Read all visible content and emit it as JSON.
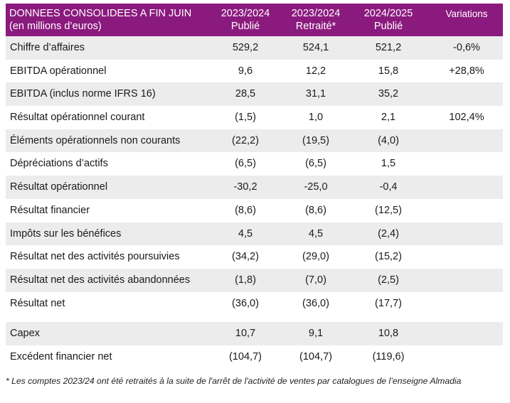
{
  "header": {
    "title_line1": "DONNEES CONSOLIDEES A FIN JUIN",
    "title_line2": "(en millions d’euros)",
    "columns": [
      {
        "line1": "2023/2024",
        "line2": "Publié"
      },
      {
        "line1": "2023/2024",
        "line2": "Retraité*"
      },
      {
        "line1": "2024/2025",
        "line2": "Publié"
      },
      {
        "line1": "Variations",
        "line2": ""
      }
    ]
  },
  "rows": [
    {
      "label": "Chiffre d’affaires",
      "values": [
        "529,2",
        "524,1",
        "521,2",
        "-0,6%"
      ]
    },
    {
      "label": "EBITDA opérationnel",
      "values": [
        "9,6",
        "12,2",
        "15,8",
        "+28,8%"
      ]
    },
    {
      "label": "EBITDA (inclus norme IFRS 16)",
      "values": [
        "28,5",
        "31,1",
        "35,2",
        ""
      ]
    },
    {
      "label": "Résultat opérationnel courant",
      "values": [
        "(1,5)",
        "1,0",
        "2,1",
        "102,4%"
      ]
    },
    {
      "label": "Éléments opérationnels non courants",
      "values": [
        "(22,2)",
        "(19,5)",
        "(4,0)",
        ""
      ]
    },
    {
      "label": "Dépréciations d’actifs",
      "values": [
        "(6,5)",
        "(6,5)",
        "1,5",
        ""
      ]
    },
    {
      "label": "Résultat opérationnel",
      "values": [
        "-30,2",
        "-25,0",
        "-0,4",
        ""
      ]
    },
    {
      "label": "Résultat financier",
      "values": [
        "(8,6)",
        "(8,6)",
        "(12,5)",
        ""
      ]
    },
    {
      "label": "Impôts sur les bénéfices",
      "values": [
        "4,5",
        "4,5",
        "(2,4)",
        ""
      ]
    },
    {
      "label": "Résultat net des activités poursuivies",
      "values": [
        "(34,2)",
        "(29,0)",
        "(15,2)",
        ""
      ]
    },
    {
      "label": "Résultat net des activités abandonnées",
      "values": [
        "(1,8)",
        "(7,0)",
        "(2,5)",
        ""
      ]
    },
    {
      "label": "Résultat net",
      "values": [
        "(36,0)",
        "(36,0)",
        "(17,7)",
        ""
      ]
    }
  ],
  "extra_rows": [
    {
      "label": "Capex",
      "values": [
        "10,7",
        "9,1",
        "10,8",
        ""
      ]
    },
    {
      "label": "Excédent financier net",
      "values": [
        "(104,7)",
        "(104,7)",
        "(119,6)",
        ""
      ]
    }
  ],
  "footnote": "* Les comptes 2023/24 ont été retraités à la suite de l'arrêt de l'activité de ventes par catalogues de l’enseigne Almadia",
  "colors": {
    "header_bg": "#8b1a7e",
    "shaded_row": "#ececec"
  }
}
